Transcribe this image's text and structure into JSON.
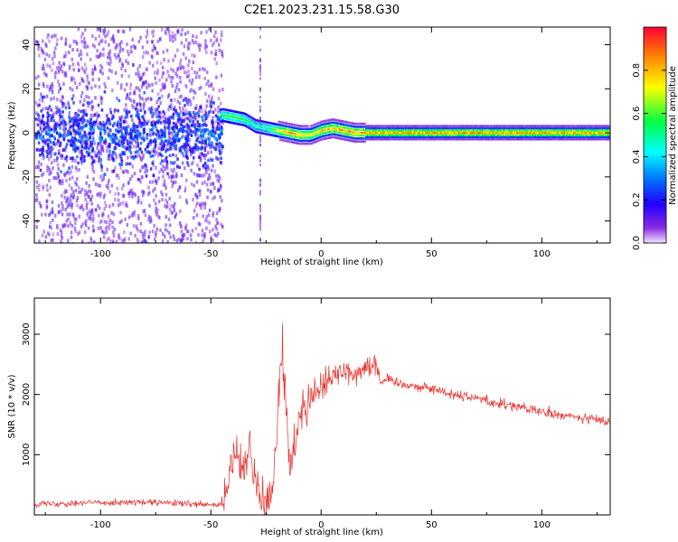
{
  "title": "C2E1.2023.231.15.58.G30",
  "colors": {
    "snr_line": "#e8302c",
    "spectrum_core": "#ff0000",
    "spectrum_mid": "#00ff00",
    "spectrum_low": "#3c00ff",
    "spectrum_faint": "#c8a4f0"
  },
  "chart_data": [
    {
      "type": "heatmap",
      "xlabel": "Height of straight line (km)",
      "ylabel": "Frequency (Hz)",
      "xlim": [
        -130,
        131
      ],
      "ylim": [
        -50,
        48
      ],
      "xticks": [
        -100,
        -50,
        0,
        50,
        100
      ],
      "yticks": [
        -40,
        -20,
        0,
        20,
        40
      ],
      "colorbar": {
        "label": "Normalized spectral amplitude",
        "colormap": "rainbow (purple-blue-cyan-green-yellow-red)",
        "range": [
          0,
          1
        ],
        "ticks": [
          "0.0",
          "0.2",
          "0.4",
          "0.6",
          "0.8"
        ]
      },
      "signal_track": {
        "description": "Doppler-shifted carrier frequency ridge",
        "x": [
          -130,
          -100,
          -70,
          -45,
          -40,
          -35,
          -30,
          -25,
          -20,
          -15,
          -10,
          -5,
          0,
          5,
          10,
          15,
          20,
          50,
          100,
          131
        ],
        "frequency": [
          0,
          0,
          0,
          8,
          7,
          6,
          3,
          2,
          1,
          0,
          -1,
          -1,
          1,
          2,
          1,
          0,
          0,
          0,
          0,
          0
        ],
        "peak_amplitude": [
          0.25,
          0.25,
          0.3,
          0.55,
          0.6,
          0.55,
          0.5,
          0.5,
          0.7,
          0.85,
          0.8,
          0.75,
          0.8,
          0.85,
          0.85,
          0.85,
          0.85,
          0.85,
          0.85,
          0.85
        ]
      },
      "noise_region_x": [
        -130,
        -45
      ]
    },
    {
      "type": "line",
      "xlabel": "Height of straight line (km)",
      "ylabel": "SNR (10 * v/v)",
      "xlim": [
        -130,
        131
      ],
      "ylim": [
        0,
        3600
      ],
      "xticks": [
        -100,
        -50,
        0,
        50,
        100
      ],
      "yticks": [
        1000,
        2000,
        3000
      ],
      "series": [
        {
          "x": [
            -130,
            -110,
            -90,
            -70,
            -50,
            -45,
            -42,
            -40,
            -38,
            -35,
            -32,
            -30,
            -28,
            -25,
            -22,
            -20,
            -18,
            -16,
            -14,
            -12,
            -10,
            -5,
            0,
            5,
            10,
            15,
            20,
            25,
            27,
            30,
            40,
            50,
            60,
            70,
            80,
            90,
            100,
            110,
            120,
            131
          ],
          "values": [
            180,
            200,
            210,
            200,
            160,
            170,
            500,
            1000,
            900,
            700,
            1200,
            600,
            300,
            150,
            400,
            1500,
            2600,
            1800,
            700,
            1200,
            1700,
            1950,
            2150,
            2300,
            2400,
            2350,
            2450,
            2550,
            2200,
            2250,
            2150,
            2100,
            2000,
            1950,
            1850,
            1800,
            1700,
            1650,
            1600,
            1550
          ]
        }
      ]
    }
  ]
}
